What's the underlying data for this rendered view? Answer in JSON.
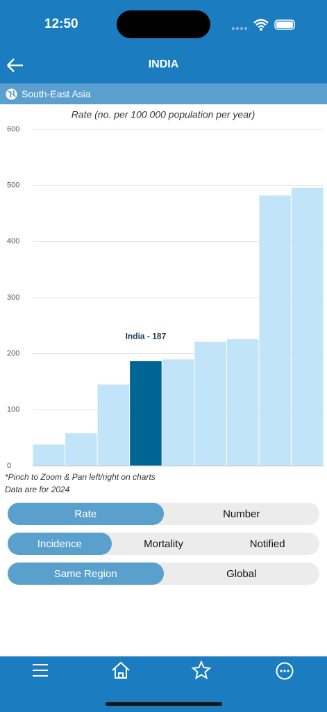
{
  "status_bar": {
    "time": "12:50"
  },
  "header": {
    "title": "INDIA"
  },
  "region": "South-East Asia",
  "chart_data": {
    "type": "bar",
    "title": "Rate (no. per 100 000 population per year)",
    "categories": [
      null,
      null,
      null,
      null,
      null,
      null,
      null,
      null,
      null
    ],
    "values": [
      38,
      58,
      145,
      187,
      190,
      221,
      226,
      482,
      496
    ],
    "color": "#c2e4f9",
    "highlight_color": "#006494",
    "highlight_index": 3,
    "annotation": "India - 187",
    "ylim": [
      0,
      600
    ],
    "yticks": [
      0,
      100,
      200,
      300,
      400,
      500,
      600
    ],
    "grid": true
  },
  "notes": [
    "*Pinch to Zoom & Pan left/right on charts",
    "Data are for 2024"
  ],
  "toggles": [
    {
      "options": [
        "Rate",
        "Number"
      ],
      "selected": 0
    },
    {
      "options": [
        "Incidence",
        "Mortality",
        "Notified"
      ],
      "selected": 0
    },
    {
      "options": [
        "Same Region",
        "Global"
      ],
      "selected": 0
    }
  ]
}
